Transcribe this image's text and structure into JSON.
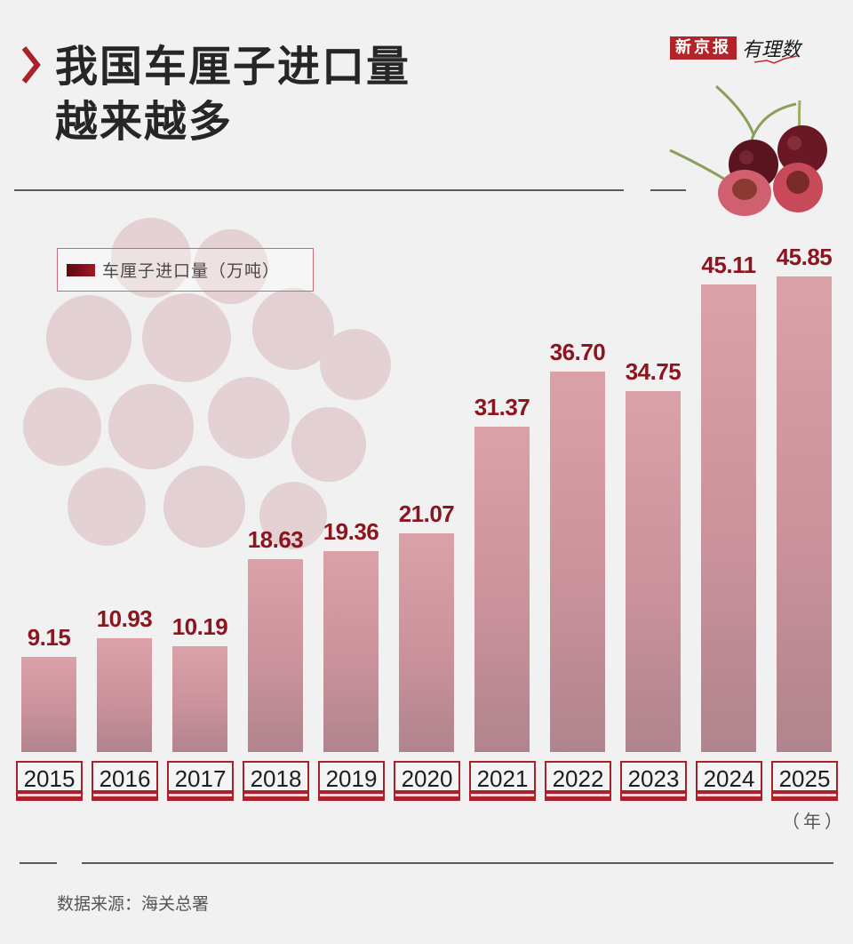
{
  "header": {
    "title_line1": "我国车厘子进口量",
    "title_line2": "越来越多",
    "brand_name": "新京报",
    "brand_sub": "有理数"
  },
  "legend": {
    "label": "车厘子进口量（万吨）"
  },
  "axis": {
    "unit": "（年）"
  },
  "footer": {
    "source": "数据来源：海关总署"
  },
  "colors": {
    "accent": "#b2232a",
    "value_text": "#8b1620",
    "bar_top": "#dba1a8",
    "bar_bottom": "#b0848e",
    "background": "#f1f1f1"
  },
  "chart_data": {
    "type": "bar",
    "title": "我国车厘子进口量越来越多",
    "xlabel": "（年）",
    "ylabel": "车厘子进口量（万吨）",
    "categories": [
      "2015",
      "2016",
      "2017",
      "2018",
      "2019",
      "2020",
      "2021",
      "2022",
      "2023",
      "2024",
      "2025"
    ],
    "values": [
      9.15,
      10.93,
      10.19,
      18.63,
      19.36,
      21.07,
      31.37,
      36.7,
      34.75,
      45.11,
      45.85
    ],
    "value_labels": [
      "9.15",
      "10.93",
      "10.19",
      "18.63",
      "19.36",
      "21.07",
      "31.37",
      "36.70",
      "34.75",
      "45.11",
      "45.85"
    ],
    "series": [
      {
        "name": "车厘子进口量（万吨）",
        "values": [
          9.15,
          10.93,
          10.19,
          18.63,
          19.36,
          21.07,
          31.37,
          36.7,
          34.75,
          45.11,
          45.85
        ]
      }
    ],
    "legend_position": "top-left",
    "grid": false,
    "source": "数据来源：海关总署"
  }
}
